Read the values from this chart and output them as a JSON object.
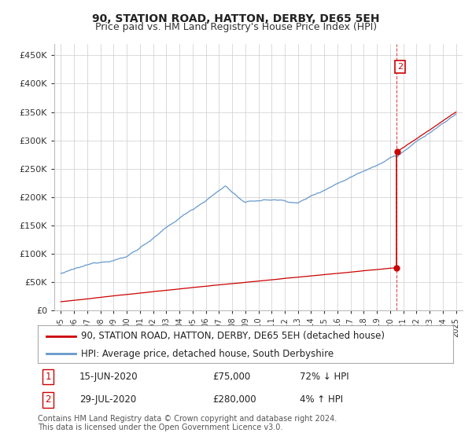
{
  "title": "90, STATION ROAD, HATTON, DERBY, DE65 5EH",
  "subtitle": "Price paid vs. HM Land Registry's House Price Index (HPI)",
  "ylabel_ticks": [
    "£0",
    "£50K",
    "£100K",
    "£150K",
    "£200K",
    "£250K",
    "£300K",
    "£350K",
    "£400K",
    "£450K"
  ],
  "ytick_values": [
    0,
    50000,
    100000,
    150000,
    200000,
    250000,
    300000,
    350000,
    400000,
    450000
  ],
  "ylim": [
    0,
    470000
  ],
  "xlim_start": 1994.5,
  "xlim_end": 2025.5,
  "hpi_color": "#6699cc",
  "price_color": "#cc0000",
  "annotation_box_color": "#cc0000",
  "background_color": "#ffffff",
  "grid_color": "#cccccc",
  "legend_label_price": "90, STATION ROAD, HATTON, DERBY, DE65 5EH (detached house)",
  "legend_label_hpi": "HPI: Average price, detached house, South Derbyshire",
  "transaction1_label": "1",
  "transaction1_date": "15-JUN-2020",
  "transaction1_price": "£75,000",
  "transaction1_hpi": "72% ↓ HPI",
  "transaction2_label": "2",
  "transaction2_date": "29-JUL-2020",
  "transaction2_price": "£280,000",
  "transaction2_hpi": "4% ↑ HPI",
  "footer": "Contains HM Land Registry data © Crown copyright and database right 2024.\nThis data is licensed under the Open Government Licence v3.0.",
  "title_fontsize": 10,
  "subtitle_fontsize": 9,
  "tick_fontsize": 8,
  "legend_fontsize": 8.5,
  "table_fontsize": 8.5,
  "footer_fontsize": 7
}
